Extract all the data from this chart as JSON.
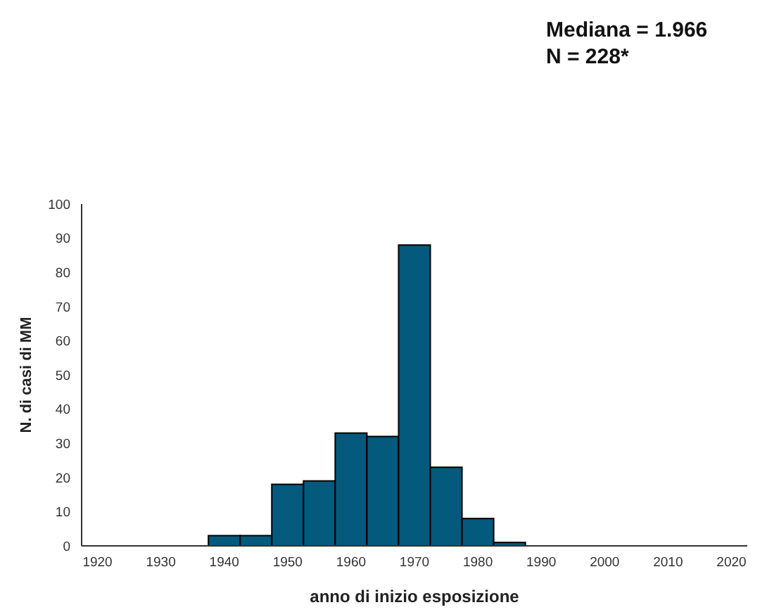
{
  "chart_data": {
    "type": "histogram",
    "xlabel": "anno di inizio esposizione",
    "ylabel": "N. di casi di MM",
    "annotations": [
      "Mediana = 1.966",
      "N = 228*"
    ],
    "bins": [
      1937.5,
      1942.5,
      1947.5,
      1952.5,
      1957.5,
      1962.5,
      1967.5,
      1972.5,
      1977.5,
      1982.5,
      1987.5
    ],
    "values": [
      3,
      3,
      18,
      19,
      33,
      32,
      88,
      23,
      8,
      1
    ],
    "color": "#035a7c",
    "xlim": [
      1917.5,
      2022.5
    ],
    "xticks": [
      1920,
      1930,
      1940,
      1950,
      1960,
      1970,
      1980,
      1990,
      2000,
      2010,
      2020
    ],
    "ylim": [
      0,
      100
    ],
    "yticks": [
      0,
      10,
      20,
      30,
      40,
      50,
      60,
      70,
      80,
      90,
      100
    ],
    "grid": false
  }
}
